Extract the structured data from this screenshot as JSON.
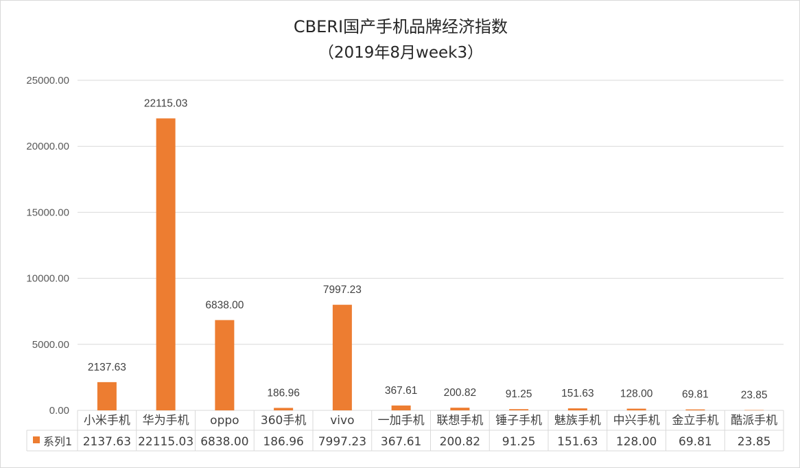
{
  "chart_data": {
    "type": "bar",
    "title": "CBERI国产手机品牌经济指数",
    "subtitle": "（2019年8月week3）",
    "categories": [
      "小米手机",
      "华为手机",
      "oppo",
      "360手机",
      "vivo",
      "一加手机",
      "联想手机",
      "锤子手机",
      "魅族手机",
      "中兴手机",
      "金立手机",
      "酷派手机"
    ],
    "series": [
      {
        "name": "系列1",
        "values": [
          2137.63,
          22115.03,
          6838.0,
          186.96,
          7997.23,
          367.61,
          200.82,
          91.25,
          151.63,
          128.0,
          69.81,
          23.85
        ],
        "labels": [
          "2137.63",
          "22115.03",
          "6838.00",
          "186.96",
          "7997.23",
          "367.61",
          "200.82",
          "91.25",
          "151.63",
          "128.00",
          "69.81",
          "23.85"
        ],
        "color": "#ed7d31"
      }
    ],
    "yticks": [
      "0.00",
      "5000.00",
      "10000.00",
      "15000.00",
      "20000.00",
      "25000.00"
    ],
    "ylim": [
      0,
      25000
    ],
    "xlabel": "",
    "ylabel": "",
    "grid": true,
    "legend": "data-table"
  },
  "colors": {
    "bar": "#ed7d31",
    "grid": "#d9d9d9",
    "text": "#404040"
  }
}
